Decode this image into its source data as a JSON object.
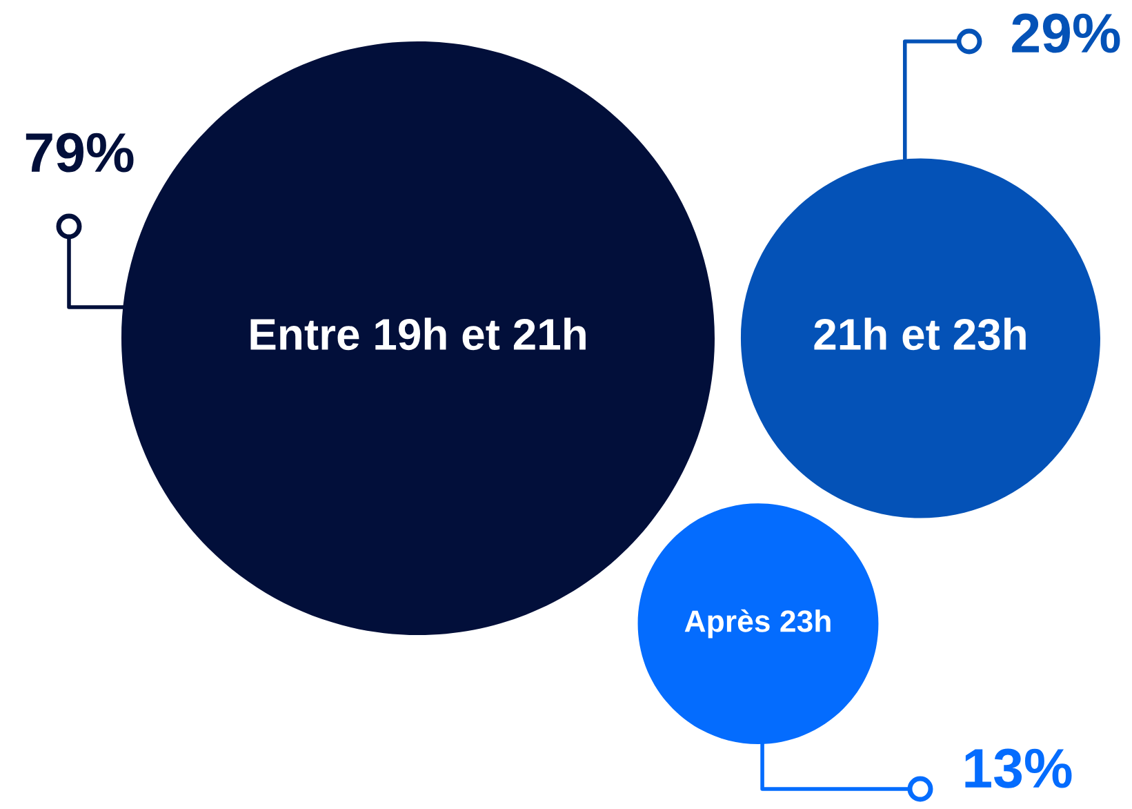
{
  "chart_data": {
    "type": "other",
    "categories": [
      "Entre 19h et 21h",
      "21h et 23h",
      "Après 23h"
    ],
    "values": [
      79,
      29,
      13
    ],
    "value_labels": [
      "79%",
      "29%",
      "13%"
    ],
    "colors": [
      "#020f3a",
      "#0452b7",
      "#046cfe"
    ]
  }
}
